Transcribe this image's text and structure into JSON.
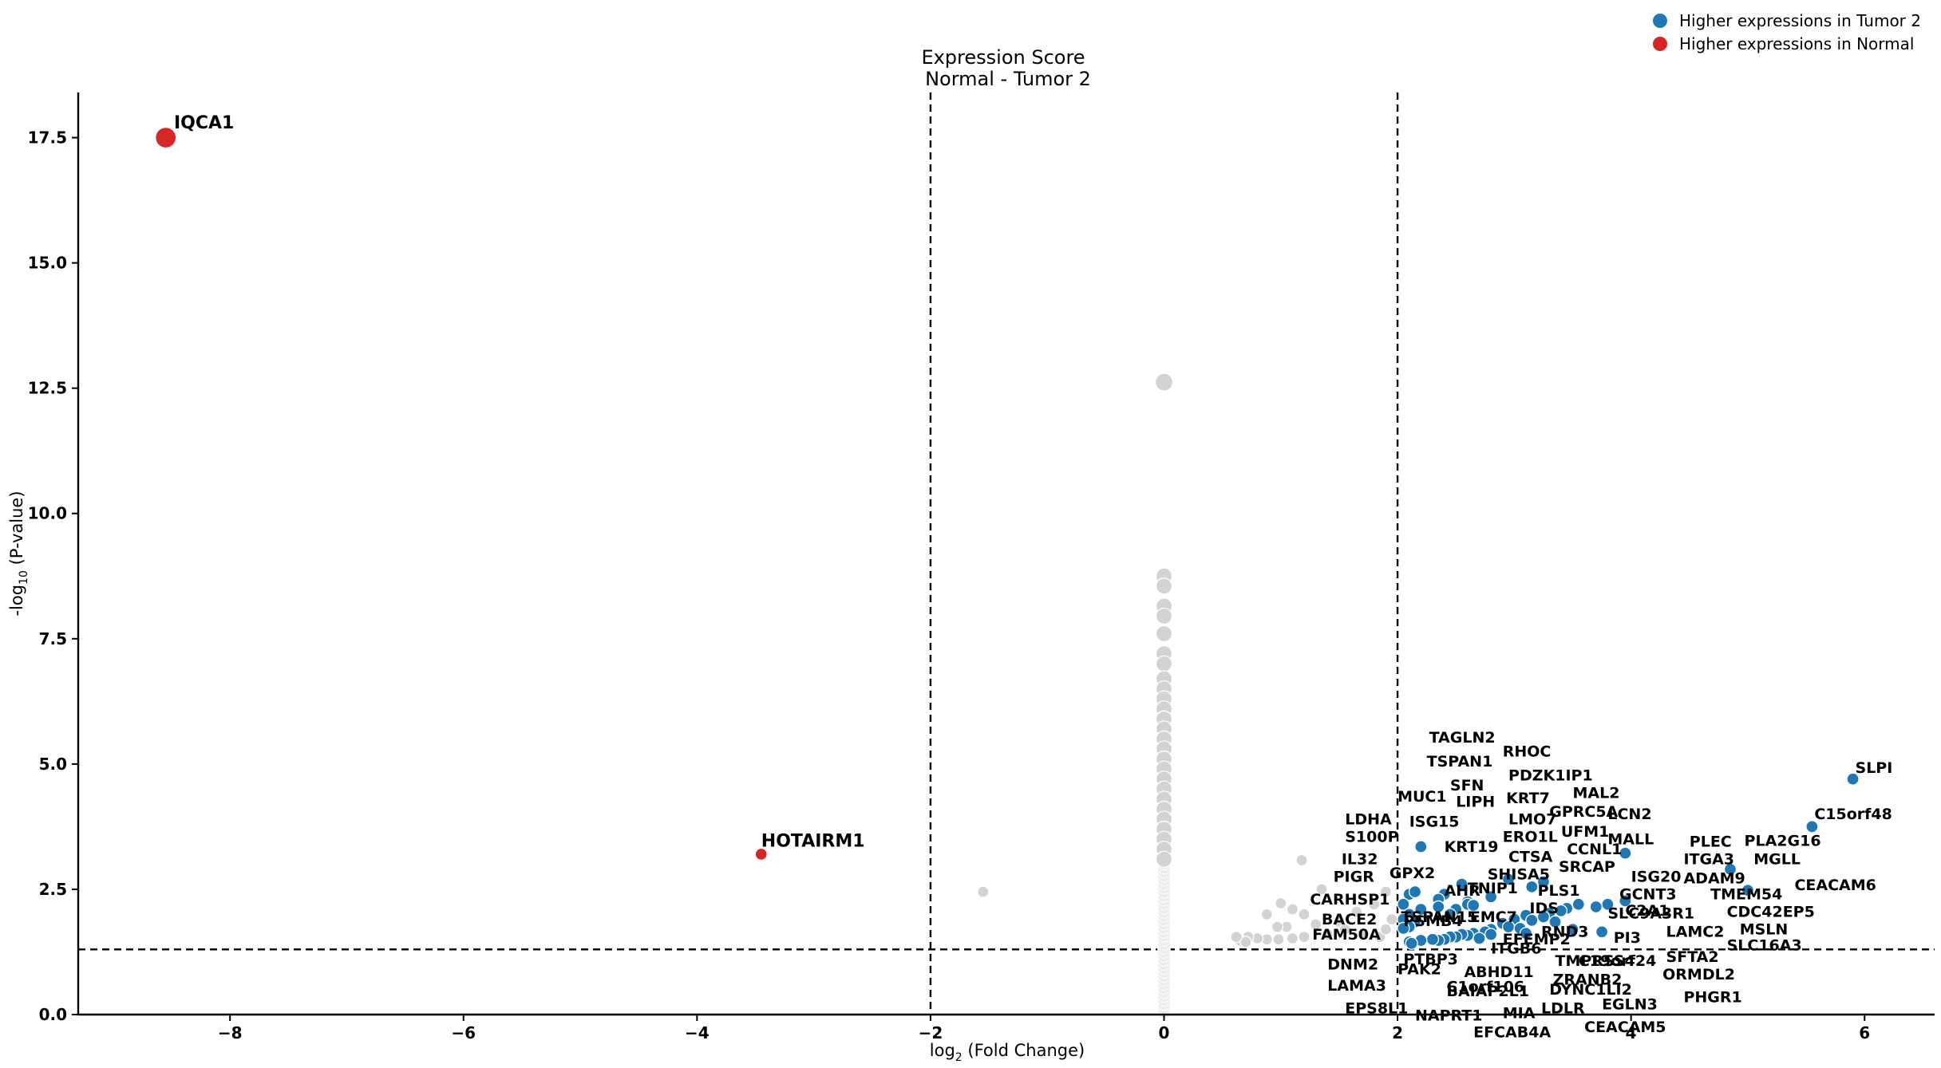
{
  "chart_data": {
    "type": "scatter",
    "title": "Expression Score",
    "subtitle": "Normal - Tumor 2",
    "xlabel": "log2 (Fold Change)",
    "xlabel_parts": {
      "base": "log",
      "sub": "2",
      "rest": " (Fold Change)"
    },
    "ylabel": "-log10 (P-value)",
    "ylabel_parts": {
      "base": "-log",
      "sub": "10",
      "rest": " (P-value)"
    },
    "xlim": [
      -9.3,
      6.6
    ],
    "ylim": [
      0,
      18.4
    ],
    "xticks": [
      -8,
      -6,
      -4,
      -2,
      0,
      2,
      4,
      6
    ],
    "xtick_labels": [
      "−8",
      "−6",
      "−4",
      "−2",
      "0",
      "2",
      "4",
      "6"
    ],
    "yticks": [
      0,
      2.5,
      5,
      7.5,
      10,
      12.5,
      15,
      17.5
    ],
    "ytick_labels": [
      "0.0",
      "2.5",
      "5.0",
      "7.5",
      "10.0",
      "12.5",
      "15.0",
      "17.5"
    ],
    "thresholds": {
      "fold_change": [
        -2,
        2
      ],
      "pvalue_line": 1.3
    },
    "legend": {
      "placement": "top-right",
      "entries": [
        {
          "label": "Higher expressions in Tumor 2",
          "color": "#1f77b4"
        },
        {
          "label": "Higher expressions in Normal",
          "color": "#d62728"
        }
      ]
    },
    "colors": {
      "tumor": "#1f77b4",
      "normal": "#d62728",
      "nonsig": "#d3d3d3",
      "zero": "#ececec"
    },
    "series": [
      {
        "name": "Higher expressions in Normal",
        "color": "#d62728",
        "points": [
          {
            "x": -8.55,
            "y": 17.5,
            "label": "IQCA1",
            "size": "large"
          },
          {
            "x": -3.45,
            "y": 3.2,
            "label": "HOTAIRM1"
          }
        ]
      },
      {
        "name": "Higher expressions in Tumor 2",
        "color": "#1f77b4",
        "points": [
          {
            "x": 5.9,
            "y": 4.7
          },
          {
            "x": 5.55,
            "y": 3.75
          },
          {
            "x": 3.95,
            "y": 3.22
          },
          {
            "x": 4.85,
            "y": 2.9
          },
          {
            "x": 5.0,
            "y": 2.48
          },
          {
            "x": 2.2,
            "y": 3.35
          },
          {
            "x": 2.95,
            "y": 2.7
          },
          {
            "x": 3.25,
            "y": 2.65
          },
          {
            "x": 3.15,
            "y": 2.55
          },
          {
            "x": 2.55,
            "y": 2.6
          },
          {
            "x": 2.4,
            "y": 2.4
          },
          {
            "x": 2.1,
            "y": 2.4
          },
          {
            "x": 2.15,
            "y": 2.45
          },
          {
            "x": 2.35,
            "y": 2.3
          },
          {
            "x": 2.6,
            "y": 2.25
          },
          {
            "x": 2.8,
            "y": 2.35
          },
          {
            "x": 3.95,
            "y": 2.27
          },
          {
            "x": 3.8,
            "y": 2.2
          },
          {
            "x": 3.55,
            "y": 2.2
          },
          {
            "x": 3.7,
            "y": 2.15
          },
          {
            "x": 3.45,
            "y": 2.12
          },
          {
            "x": 3.4,
            "y": 2.07
          },
          {
            "x": 3.3,
            "y": 2.02
          },
          {
            "x": 3.25,
            "y": 1.95
          },
          {
            "x": 3.1,
            "y": 1.98
          },
          {
            "x": 3.15,
            "y": 1.88
          },
          {
            "x": 3.0,
            "y": 1.9
          },
          {
            "x": 3.35,
            "y": 1.85
          },
          {
            "x": 2.05,
            "y": 2.2
          },
          {
            "x": 2.2,
            "y": 2.1
          },
          {
            "x": 2.1,
            "y": 2.0
          },
          {
            "x": 2.35,
            "y": 2.15
          },
          {
            "x": 2.6,
            "y": 2.2
          },
          {
            "x": 2.65,
            "y": 2.18
          },
          {
            "x": 2.5,
            "y": 2.1
          },
          {
            "x": 2.45,
            "y": 2.0
          },
          {
            "x": 2.05,
            "y": 1.9
          },
          {
            "x": 2.15,
            "y": 1.85
          },
          {
            "x": 2.1,
            "y": 1.75
          },
          {
            "x": 2.05,
            "y": 1.72
          },
          {
            "x": 2.9,
            "y": 1.82
          },
          {
            "x": 2.95,
            "y": 1.75
          },
          {
            "x": 2.8,
            "y": 1.7
          },
          {
            "x": 3.05,
            "y": 1.72
          },
          {
            "x": 2.75,
            "y": 1.65
          },
          {
            "x": 2.65,
            "y": 1.62
          },
          {
            "x": 2.6,
            "y": 1.58
          },
          {
            "x": 2.55,
            "y": 1.6
          },
          {
            "x": 2.5,
            "y": 1.55
          },
          {
            "x": 2.45,
            "y": 1.55
          },
          {
            "x": 2.4,
            "y": 1.5
          },
          {
            "x": 2.35,
            "y": 1.48
          },
          {
            "x": 2.3,
            "y": 1.5
          },
          {
            "x": 2.2,
            "y": 1.48
          },
          {
            "x": 2.1,
            "y": 1.45
          },
          {
            "x": 2.12,
            "y": 1.42
          },
          {
            "x": 2.7,
            "y": 1.52
          },
          {
            "x": 2.8,
            "y": 1.6
          },
          {
            "x": 3.75,
            "y": 1.65
          },
          {
            "x": 3.1,
            "y": 1.62
          },
          {
            "x": 3.5,
            "y": 1.7
          }
        ]
      },
      {
        "name": "Not significant",
        "color": "#d3d3d3",
        "points": [
          {
            "x": 0,
            "y": 12.62,
            "size": "large"
          },
          {
            "x": 0,
            "y": 8.75
          },
          {
            "x": 0,
            "y": 8.55
          },
          {
            "x": 0,
            "y": 8.15
          },
          {
            "x": 0,
            "y": 7.95
          },
          {
            "x": 0,
            "y": 7.6
          },
          {
            "x": 0,
            "y": 7.2
          },
          {
            "x": 0,
            "y": 7.0
          },
          {
            "x": 0,
            "y": 6.7
          },
          {
            "x": 0,
            "y": 6.5
          },
          {
            "x": 0,
            "y": 6.3
          },
          {
            "x": 0,
            "y": 6.1
          },
          {
            "x": 0,
            "y": 5.9
          },
          {
            "x": 0,
            "y": 5.7
          },
          {
            "x": 0,
            "y": 5.5
          },
          {
            "x": 0,
            "y": 5.3
          },
          {
            "x": 0,
            "y": 5.1
          },
          {
            "x": 0,
            "y": 4.9
          },
          {
            "x": 0,
            "y": 4.7
          },
          {
            "x": 0,
            "y": 4.5
          },
          {
            "x": 0,
            "y": 4.3
          },
          {
            "x": 0,
            "y": 4.1
          },
          {
            "x": 0,
            "y": 3.9
          },
          {
            "x": 0,
            "y": 3.7
          },
          {
            "x": 0,
            "y": 3.5
          },
          {
            "x": 0,
            "y": 3.3
          },
          {
            "x": 0,
            "y": 3.1
          },
          {
            "x": -1.55,
            "y": 2.45
          },
          {
            "x": 1.18,
            "y": 3.08
          },
          {
            "x": 1.35,
            "y": 2.5
          },
          {
            "x": 1.0,
            "y": 2.22
          },
          {
            "x": 1.1,
            "y": 2.1
          },
          {
            "x": 1.2,
            "y": 2.0
          },
          {
            "x": 0.88,
            "y": 2.0
          },
          {
            "x": 1.3,
            "y": 1.8
          },
          {
            "x": 1.05,
            "y": 1.75
          },
          {
            "x": 0.97,
            "y": 1.75
          },
          {
            "x": 1.5,
            "y": 1.85
          },
          {
            "x": 1.65,
            "y": 2.05
          },
          {
            "x": 1.8,
            "y": 2.2
          },
          {
            "x": 1.9,
            "y": 2.45
          },
          {
            "x": 1.95,
            "y": 1.9
          },
          {
            "x": 1.4,
            "y": 1.6
          },
          {
            "x": 1.2,
            "y": 1.55
          },
          {
            "x": 1.1,
            "y": 1.52
          },
          {
            "x": 0.98,
            "y": 1.5
          },
          {
            "x": 0.88,
            "y": 1.5
          },
          {
            "x": 0.8,
            "y": 1.52
          },
          {
            "x": 0.72,
            "y": 1.55
          },
          {
            "x": 0.65,
            "y": 1.48
          },
          {
            "x": 0.7,
            "y": 1.45
          },
          {
            "x": 0.62,
            "y": 1.55
          },
          {
            "x": 1.55,
            "y": 1.7
          },
          {
            "x": 1.7,
            "y": 1.6
          },
          {
            "x": 1.85,
            "y": 1.55
          },
          {
            "x": 1.9,
            "y": 1.7
          }
        ]
      }
    ],
    "annotations": [
      {
        "text": "IQCA1",
        "x": -8.48,
        "y": 17.68,
        "big": true
      },
      {
        "text": "HOTAIRM1",
        "x": -3.45,
        "y": 3.35,
        "big": true
      },
      {
        "text": "SLPI",
        "x": 5.92,
        "y": 4.82
      },
      {
        "text": "C15orf48",
        "x": 5.57,
        "y": 3.9
      },
      {
        "text": "PLA2G16",
        "x": 4.97,
        "y": 3.37
      },
      {
        "text": "MGLL",
        "x": 5.05,
        "y": 3.0
      },
      {
        "text": "CEACAM6",
        "x": 5.4,
        "y": 2.48
      },
      {
        "text": "PLEC",
        "x": 4.5,
        "y": 3.35
      },
      {
        "text": "ITGA3",
        "x": 4.45,
        "y": 3.0
      },
      {
        "text": "ADAM9",
        "x": 4.45,
        "y": 2.62
      },
      {
        "text": "TMEM54",
        "x": 4.68,
        "y": 2.3
      },
      {
        "text": "CDC42EP5",
        "x": 4.82,
        "y": 1.95
      },
      {
        "text": "MSLN",
        "x": 4.93,
        "y": 1.6
      },
      {
        "text": "SLC16A3",
        "x": 4.82,
        "y": 1.28
      },
      {
        "text": "LAMC2",
        "x": 4.3,
        "y": 1.55
      },
      {
        "text": "SFTA2",
        "x": 4.3,
        "y": 1.05
      },
      {
        "text": "ORMDL2",
        "x": 4.27,
        "y": 0.7
      },
      {
        "text": "PHGR1",
        "x": 4.45,
        "y": 0.25
      },
      {
        "text": "LCN2",
        "x": 3.8,
        "y": 3.9
      },
      {
        "text": "MALL",
        "x": 3.8,
        "y": 3.4
      },
      {
        "text": "ISG20",
        "x": 4.0,
        "y": 2.65
      },
      {
        "text": "GCNT3",
        "x": 3.9,
        "y": 2.3
      },
      {
        "text": "C2A1",
        "x": 3.95,
        "y": 1.97
      },
      {
        "text": "SLC9A3R1",
        "x": 3.8,
        "y": 1.92
      },
      {
        "text": "PI3",
        "x": 3.85,
        "y": 1.43
      },
      {
        "text": "MAL2",
        "x": 3.5,
        "y": 4.32
      },
      {
        "text": "GPRC5A",
        "x": 3.3,
        "y": 3.95
      },
      {
        "text": "UFM1",
        "x": 3.4,
        "y": 3.55
      },
      {
        "text": "CCNL1",
        "x": 3.45,
        "y": 3.2
      },
      {
        "text": "SRCAP",
        "x": 3.38,
        "y": 2.85
      },
      {
        "text": "PLS1",
        "x": 3.2,
        "y": 2.37
      },
      {
        "text": "IDS",
        "x": 3.13,
        "y": 2.02
      },
      {
        "text": "RND3",
        "x": 3.23,
        "y": 1.55
      },
      {
        "text": "PDZK1IP1",
        "x": 2.95,
        "y": 4.67
      },
      {
        "text": "KRT7",
        "x": 2.93,
        "y": 4.22
      },
      {
        "text": "LMO7",
        "x": 2.95,
        "y": 3.8
      },
      {
        "text": "ERO1L",
        "x": 2.9,
        "y": 3.45
      },
      {
        "text": "CTSA",
        "x": 2.95,
        "y": 3.05
      },
      {
        "text": "SHISA5",
        "x": 2.77,
        "y": 2.7
      },
      {
        "text": "TNIP1",
        "x": 2.6,
        "y": 2.42
      },
      {
        "text": "EMC7",
        "x": 2.62,
        "y": 1.85
      },
      {
        "text": "EFEMP2",
        "x": 2.9,
        "y": 1.4
      },
      {
        "text": "ITGB6",
        "x": 2.8,
        "y": 1.22
      },
      {
        "text": "TMPRSS4",
        "x": 3.35,
        "y": 0.97
      },
      {
        "text": "C19orf24",
        "x": 3.55,
        "y": 0.97
      },
      {
        "text": "ZRANB2",
        "x": 3.33,
        "y": 0.6
      },
      {
        "text": "DYNC1LI2",
        "x": 3.3,
        "y": 0.4
      },
      {
        "text": "EGLN3",
        "x": 3.75,
        "y": 0.1
      },
      {
        "text": "CEACAM5",
        "x": 3.6,
        "y": -0.35
      },
      {
        "text": "LDLR",
        "x": 3.23,
        "y": 0.02
      },
      {
        "text": "MIA",
        "x": 2.9,
        "y": -0.07
      },
      {
        "text": "EFCAB4A",
        "x": 2.65,
        "y": -0.45
      },
      {
        "text": "ABHD11",
        "x": 2.57,
        "y": 0.75
      },
      {
        "text": "C1orf106",
        "x": 2.42,
        "y": 0.45
      },
      {
        "text": "BAIAP2L1",
        "x": 2.42,
        "y": 0.37
      },
      {
        "text": "NAPRT1",
        "x": 2.15,
        "y": -0.12
      },
      {
        "text": "RHOC",
        "x": 2.9,
        "y": 5.15
      },
      {
        "text": "TAGLN2",
        "x": 2.27,
        "y": 5.43
      },
      {
        "text": "TSPAN1",
        "x": 2.25,
        "y": 4.95
      },
      {
        "text": "SFN",
        "x": 2.45,
        "y": 4.47
      },
      {
        "text": "LIPH",
        "x": 2.5,
        "y": 4.15
      },
      {
        "text": "MUC1",
        "x": 2.0,
        "y": 4.25
      },
      {
        "text": "ISG15",
        "x": 2.1,
        "y": 3.75
      },
      {
        "text": "KRT19",
        "x": 2.4,
        "y": 3.25
      },
      {
        "text": "LDHA",
        "x": 1.55,
        "y": 3.8
      },
      {
        "text": "S100P",
        "x": 1.55,
        "y": 3.45
      },
      {
        "text": "IL32",
        "x": 1.52,
        "y": 3.0
      },
      {
        "text": "PIGR",
        "x": 1.45,
        "y": 2.65
      },
      {
        "text": "GPX2",
        "x": 1.93,
        "y": 2.72
      },
      {
        "text": "AHR",
        "x": 2.4,
        "y": 2.37
      },
      {
        "text": "CARHSP1",
        "x": 1.25,
        "y": 2.2
      },
      {
        "text": "BACE2",
        "x": 1.35,
        "y": 1.8
      },
      {
        "text": "FAM50A",
        "x": 1.27,
        "y": 1.5
      },
      {
        "text": "TSPAN15",
        "x": 2.03,
        "y": 1.85
      },
      {
        "text": "PSMB4",
        "x": 2.05,
        "y": 1.77
      },
      {
        "text": "PTBP3",
        "x": 2.05,
        "y": 1.0
      },
      {
        "text": "PAK2",
        "x": 2.0,
        "y": 0.8
      },
      {
        "text": "DNM2",
        "x": 1.4,
        "y": 0.9
      },
      {
        "text": "LAMA3",
        "x": 1.4,
        "y": 0.48
      },
      {
        "text": "EPS8L1",
        "x": 1.55,
        "y": 0.02
      }
    ]
  }
}
